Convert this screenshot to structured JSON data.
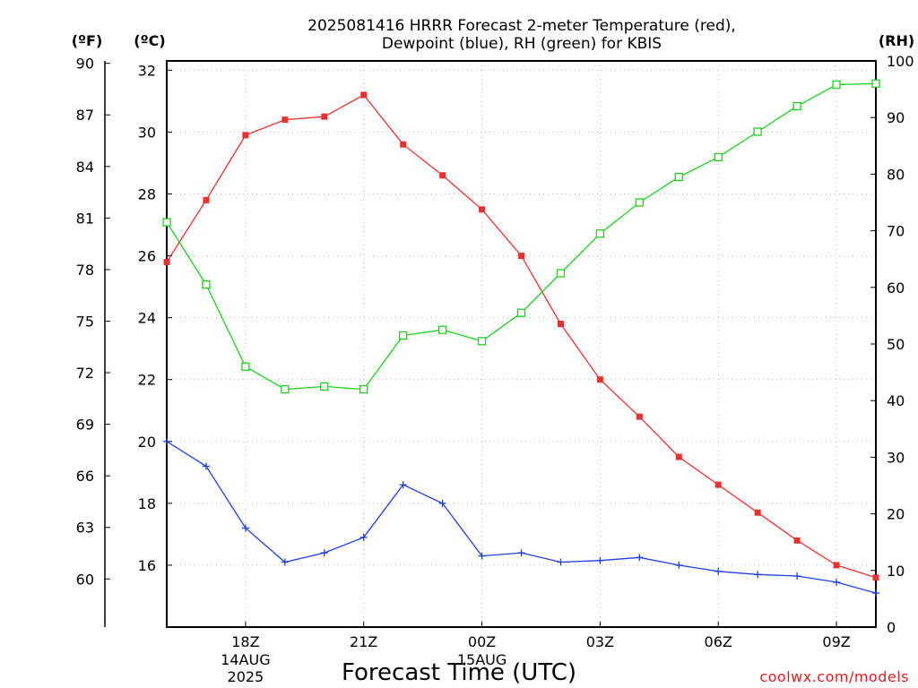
{
  "chart_data": {
    "type": "line",
    "title_line1": "2025081416 HRRR Forecast 2-meter Temperature (red),",
    "title_line2": "Dewpoint (blue), RH (green) for KBIS",
    "units": {
      "f": "(ºF)",
      "c": "(ºC)",
      "rh": "(RH)"
    },
    "xlabel": "Forecast Time (UTC)",
    "credit": "coolwx.com/models",
    "x_hours": [
      16,
      17,
      18,
      19,
      20,
      21,
      22,
      23,
      24,
      25,
      26,
      27,
      28,
      29,
      30,
      31,
      32,
      33,
      34
    ],
    "xlim": [
      16,
      34
    ],
    "x_ticks": [
      {
        "hour": 18,
        "label": "18Z",
        "sub1": "14AUG",
        "sub2": "2025"
      },
      {
        "hour": 21,
        "label": "21Z"
      },
      {
        "hour": 24,
        "label": "00Z",
        "sub1": "15AUG"
      },
      {
        "hour": 27,
        "label": "03Z"
      },
      {
        "hour": 30,
        "label": "06Z"
      },
      {
        "hour": 33,
        "label": "09Z"
      }
    ],
    "y_celsius": {
      "ylim": [
        14.0,
        32.3
      ],
      "ticks": [
        16,
        18,
        20,
        22,
        24,
        26,
        28,
        30,
        32
      ]
    },
    "y_fahrenheit": {
      "ticks": [
        60,
        63,
        66,
        69,
        72,
        75,
        78,
        81,
        84,
        87,
        90
      ]
    },
    "y_rh": {
      "ylim": [
        0,
        100
      ],
      "ticks": [
        0,
        10,
        20,
        30,
        40,
        50,
        60,
        70,
        80,
        90,
        100
      ]
    },
    "grid": true,
    "series": [
      {
        "name": "Temperature",
        "axis": "celsius",
        "color": "#e83232",
        "marker": "filled-square",
        "values": [
          25.8,
          27.8,
          29.9,
          30.4,
          30.5,
          31.2,
          29.6,
          28.6,
          27.5,
          26.0,
          23.8,
          22.0,
          20.8,
          19.5,
          18.6,
          17.7,
          16.8,
          16.0,
          15.6
        ]
      },
      {
        "name": "Dewpoint",
        "axis": "celsius",
        "color": "#2040e0",
        "marker": "plus",
        "values": [
          20.0,
          19.2,
          17.2,
          16.1,
          16.4,
          16.9,
          18.6,
          18.0,
          16.3,
          16.4,
          16.1,
          16.15,
          16.25,
          16.0,
          15.8,
          15.7,
          15.65,
          15.45,
          15.1
        ]
      },
      {
        "name": "RH",
        "axis": "rh",
        "color": "#20d020",
        "marker": "open-square",
        "values": [
          71.5,
          60.5,
          46.0,
          42.0,
          42.5,
          42.0,
          51.5,
          52.5,
          50.5,
          55.5,
          62.5,
          69.5,
          75.0,
          79.5,
          83.0,
          87.5,
          92.0,
          95.8,
          96.0
        ]
      }
    ]
  }
}
